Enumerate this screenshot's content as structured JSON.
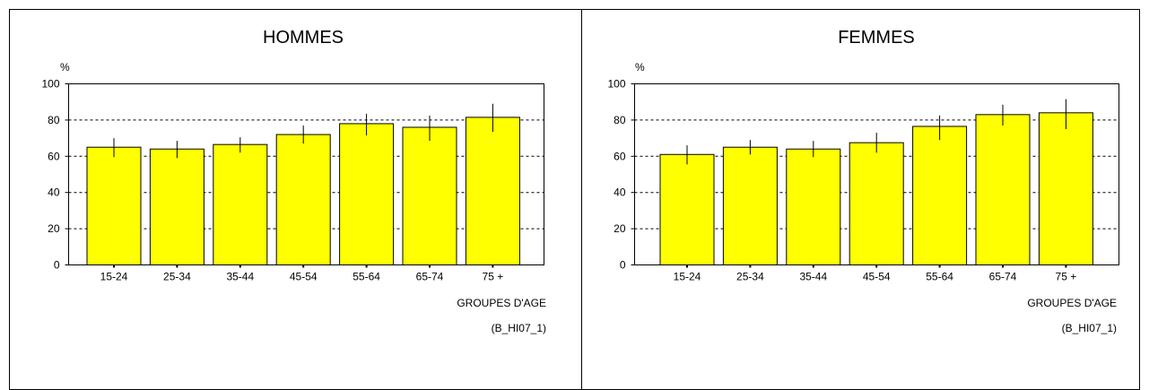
{
  "chart_data": [
    {
      "type": "bar",
      "title": "HOMMES",
      "ylabel": "%",
      "xlabel": "GROUPES D'AGE",
      "note": "(B_HI07_1)",
      "categories": [
        "15-24",
        "25-34",
        "35-44",
        "45-54",
        "55-64",
        "65-74",
        "75 +"
      ],
      "values": [
        65,
        64,
        66.5,
        72,
        78,
        76,
        81.5
      ],
      "error_low": [
        59.5,
        59,
        62,
        67,
        71.5,
        68.5,
        73.5
      ],
      "error_high": [
        70,
        68.5,
        70.5,
        77,
        83.5,
        82.5,
        89
      ],
      "ylim": [
        0,
        100
      ],
      "yticks": [
        0,
        20,
        40,
        60,
        80,
        100
      ],
      "grid": "horizontal dotted",
      "bar_color": "#ffff00"
    },
    {
      "type": "bar",
      "title": "FEMMES",
      "ylabel": "%",
      "xlabel": "GROUPES D'AGE",
      "note": "(B_HI07_1)",
      "categories": [
        "15-24",
        "25-34",
        "35-44",
        "45-54",
        "55-64",
        "65-74",
        "75 +"
      ],
      "values": [
        61,
        65,
        64,
        67.5,
        76.5,
        83,
        84
      ],
      "error_low": [
        55.5,
        61,
        59.5,
        62,
        69,
        77,
        75
      ],
      "error_high": [
        66,
        69,
        68.5,
        73,
        82.5,
        88.5,
        91.5
      ],
      "ylim": [
        0,
        100
      ],
      "yticks": [
        0,
        20,
        40,
        60,
        80,
        100
      ],
      "grid": "horizontal dotted",
      "bar_color": "#ffff00"
    }
  ]
}
